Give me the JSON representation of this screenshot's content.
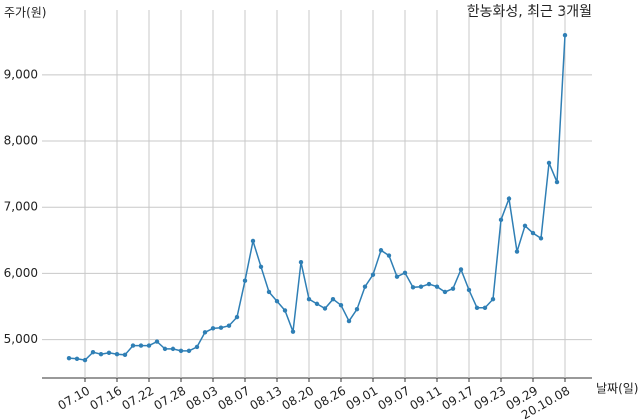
{
  "chart_data": {
    "type": "line",
    "title": "한농화성, 최근 3개월",
    "y_label": "주가(원)",
    "x_label": "날짜(일)",
    "categories": [
      null,
      null,
      "07.10",
      null,
      null,
      null,
      "07.16",
      null,
      null,
      null,
      "07.22",
      null,
      null,
      null,
      "07.28",
      null,
      null,
      null,
      "08.03",
      null,
      null,
      null,
      "08.07",
      null,
      null,
      null,
      "08.13",
      null,
      null,
      null,
      "08.20",
      null,
      null,
      null,
      "08.26",
      null,
      null,
      null,
      "09.01",
      null,
      null,
      null,
      "09.07",
      null,
      null,
      null,
      "09.11",
      null,
      null,
      null,
      "09.17",
      null,
      null,
      null,
      "09.23",
      null,
      null,
      null,
      "09.29",
      null,
      null,
      null,
      "20.10.08"
    ],
    "series": [
      {
        "color": "#2f7fb5",
        "values": [
          4720,
          4710,
          4690,
          4810,
          4780,
          4800,
          4780,
          4770,
          4910,
          4910,
          4910,
          4970,
          4860,
          4860,
          4830,
          4830,
          4890,
          5110,
          5170,
          5180,
          5210,
          5340,
          5890,
          6490,
          6100,
          5720,
          5580,
          5440,
          5120,
          6170,
          5610,
          5540,
          5470,
          5610,
          5520,
          5280,
          5460,
          5800,
          5980,
          6350,
          6270,
          5950,
          6010,
          5790,
          5800,
          5840,
          5800,
          5720,
          5770,
          6060,
          5750,
          5480,
          5480,
          5610,
          6810,
          7130,
          6330,
          6720,
          6610,
          6530,
          7670,
          7380,
          9600
        ]
      }
    ],
    "ylim": [
      4420,
      9980
    ],
    "yticks": [
      {
        "value": 5000,
        "label": "5,000"
      },
      {
        "value": 6000,
        "label": "6,000"
      },
      {
        "value": 7000,
        "label": "7,000"
      },
      {
        "value": 8000,
        "label": "8,000"
      },
      {
        "value": 9000,
        "label": "9,000"
      }
    ],
    "grid": true
  }
}
